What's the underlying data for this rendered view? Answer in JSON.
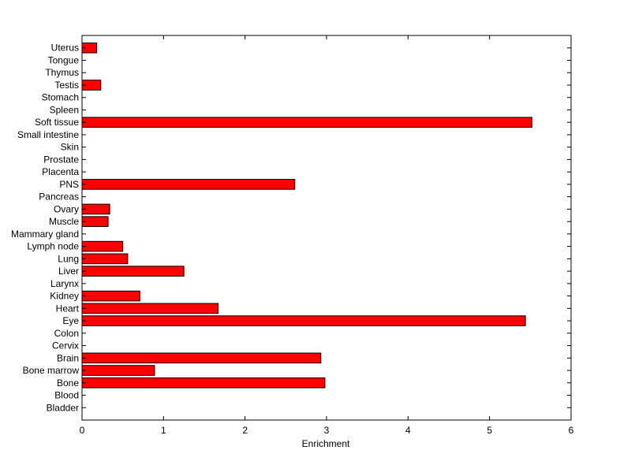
{
  "chart_data": {
    "type": "bar",
    "orientation": "horizontal",
    "categories": [
      "Bladder",
      "Blood",
      "Bone",
      "Bone marrow",
      "Brain",
      "Cervix",
      "Colon",
      "Eye",
      "Heart",
      "Kidney",
      "Larynx",
      "Liver",
      "Lung",
      "Lymph node",
      "Mammary gland",
      "Muscle",
      "Ovary",
      "Pancreas",
      "PNS",
      "Placenta",
      "Prostate",
      "Skin",
      "Small intestine",
      "Soft tissue",
      "Spleen",
      "Stomach",
      "Testis",
      "Thymus",
      "Tongue",
      "Uterus"
    ],
    "values": [
      0,
      0,
      2.98,
      0.89,
      2.93,
      0,
      0,
      5.44,
      1.67,
      0.71,
      0,
      1.25,
      0.56,
      0.5,
      0,
      0.32,
      0.34,
      0,
      2.61,
      0,
      0,
      0,
      0,
      5.52,
      0,
      0,
      0.23,
      0,
      0,
      0.18
    ],
    "xlabel": "Enrichment",
    "ylabel": "",
    "xlim": [
      0,
      6
    ],
    "xticks": [
      "0",
      "1",
      "2",
      "3",
      "4",
      "5",
      "6"
    ],
    "grid": false,
    "bar_color": "#ff0000",
    "edge_color": "#000000"
  }
}
